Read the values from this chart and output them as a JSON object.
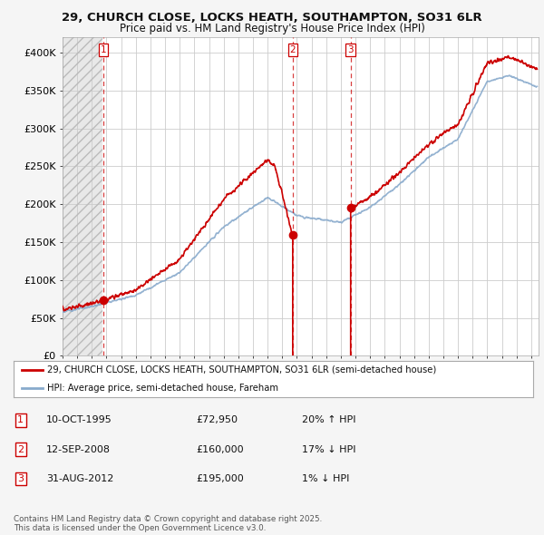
{
  "title_line1": "29, CHURCH CLOSE, LOCKS HEATH, SOUTHAMPTON, SO31 6LR",
  "title_line2": "Price paid vs. HM Land Registry's House Price Index (HPI)",
  "ylim": [
    0,
    420000
  ],
  "yticks": [
    0,
    50000,
    100000,
    150000,
    200000,
    250000,
    300000,
    350000,
    400000
  ],
  "xmin": 1993.0,
  "xmax": 2025.5,
  "hatch_end": 1995.75,
  "sold_points": [
    {
      "year": 1995.78,
      "price": 72950,
      "label": "1"
    },
    {
      "year": 2008.71,
      "price": 160000,
      "label": "2"
    },
    {
      "year": 2012.66,
      "price": 195000,
      "label": "3"
    }
  ],
  "legend_entries": [
    {
      "color": "#cc0000",
      "label": "29, CHURCH CLOSE, LOCKS HEATH, SOUTHAMPTON, SO31 6LR (semi-detached house)"
    },
    {
      "color": "#88aacc",
      "label": "HPI: Average price, semi-detached house, Fareham"
    }
  ],
  "table_rows": [
    {
      "num": "1",
      "date": "10-OCT-1995",
      "price": "£72,950",
      "pct": "20% ↑ HPI"
    },
    {
      "num": "2",
      "date": "12-SEP-2008",
      "price": "£160,000",
      "pct": "17% ↓ HPI"
    },
    {
      "num": "3",
      "date": "31-AUG-2012",
      "price": "£195,000",
      "pct": "1% ↓ HPI"
    }
  ],
  "footnote": "Contains HM Land Registry data © Crown copyright and database right 2025.\nThis data is licensed under the Open Government Licence v3.0.",
  "red_line_color": "#cc0000",
  "blue_line_color": "#88aacc",
  "grid_color": "#cccccc",
  "background_color": "#f5f5f5",
  "plot_bg_color": "#ffffff"
}
